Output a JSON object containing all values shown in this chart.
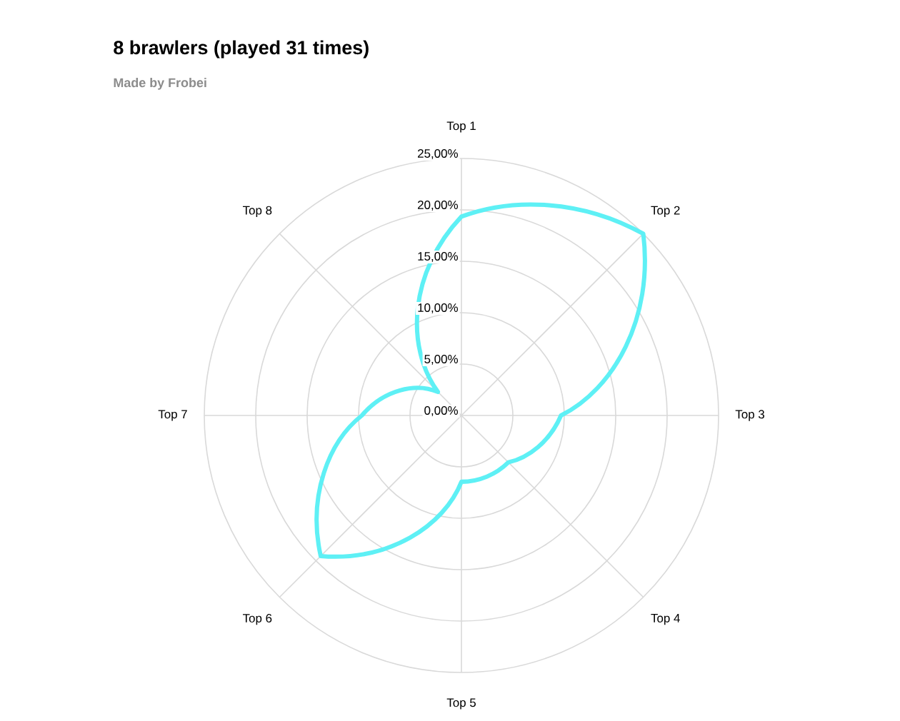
{
  "chart_data": {
    "type": "radar",
    "title": "8 brawlers (played 31 times)",
    "subtitle": "Made by Frobei",
    "categories": [
      "Top 1",
      "Top 2",
      "Top 3",
      "Top 4",
      "Top 5",
      "Top 6",
      "Top 7",
      "Top 8"
    ],
    "values": [
      19.35,
      25,
      9.68,
      6.45,
      6.45,
      19.35,
      9.68,
      3.23
    ],
    "color": "#5ef0f5",
    "ylim": [
      0,
      25
    ],
    "yticks": [
      {
        "value": 0,
        "label": "0,00%"
      },
      {
        "value": 5,
        "label": "5,00%"
      },
      {
        "value": 10,
        "label": "10,00%"
      },
      {
        "value": 15,
        "label": "15,00%"
      },
      {
        "value": 20,
        "label": "20,00%"
      },
      {
        "value": 25,
        "label": "25,00%"
      }
    ],
    "grid": true
  }
}
